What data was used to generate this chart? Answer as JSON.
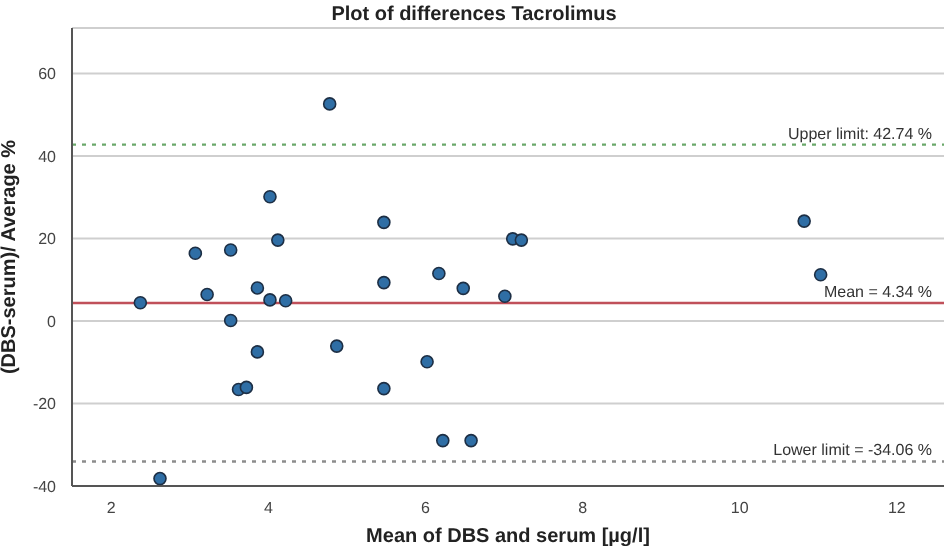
{
  "chart_data": {
    "type": "scatter",
    "title": "Plot of differences Tacrolimus",
    "xlabel": "Mean of DBS and serum [µg/l]",
    "ylabel": "(DBS-serum)/ Average %",
    "x": [
      2.37,
      2.62,
      3.07,
      3.22,
      3.52,
      3.52,
      3.62,
      3.72,
      3.86,
      3.86,
      4.02,
      4.02,
      4.12,
      4.22,
      4.78,
      4.87,
      5.47,
      5.47,
      5.47,
      6.02,
      6.17,
      6.22,
      6.48,
      6.58,
      7.01,
      7.11,
      7.22,
      10.82,
      11.03
    ],
    "series": [
      {
        "color": "#2f6ea5",
        "values": [
          4.4,
          -38.2,
          16.4,
          6.4,
          17.2,
          0.1,
          -16.6,
          -16.1,
          8,
          -7.5,
          30.1,
          5.1,
          19.6,
          4.9,
          52.6,
          -6.1,
          23.9,
          9.3,
          -16.4,
          -9.9,
          11.5,
          -29,
          7.9,
          -29,
          6,
          19.9,
          19.6,
          24.2,
          11.2
        ]
      }
    ],
    "xlim": [
      1.5,
      12.6
    ],
    "xticks": [
      2,
      4,
      6,
      8,
      10,
      12
    ],
    "ylim": [
      -40,
      71
    ],
    "yticks": [
      -40,
      -20,
      0,
      20,
      40,
      60
    ],
    "grid": "y",
    "marker": "circle",
    "legend": false,
    "ref_lines": [
      {
        "axis": "y",
        "value": 42.74,
        "label": "Upper limit: 42.74 %",
        "color": "#6aa86a",
        "line_style": "dotted"
      },
      {
        "axis": "y",
        "value": 4.34,
        "label": "Mean = 4.34 %",
        "color": "#c0505a",
        "line_style": "solid"
      },
      {
        "axis": "y",
        "value": -34.06,
        "label": "Lower limit = -34.06 %",
        "color": "#8c8c8c",
        "line_style": "dotted"
      }
    ]
  }
}
